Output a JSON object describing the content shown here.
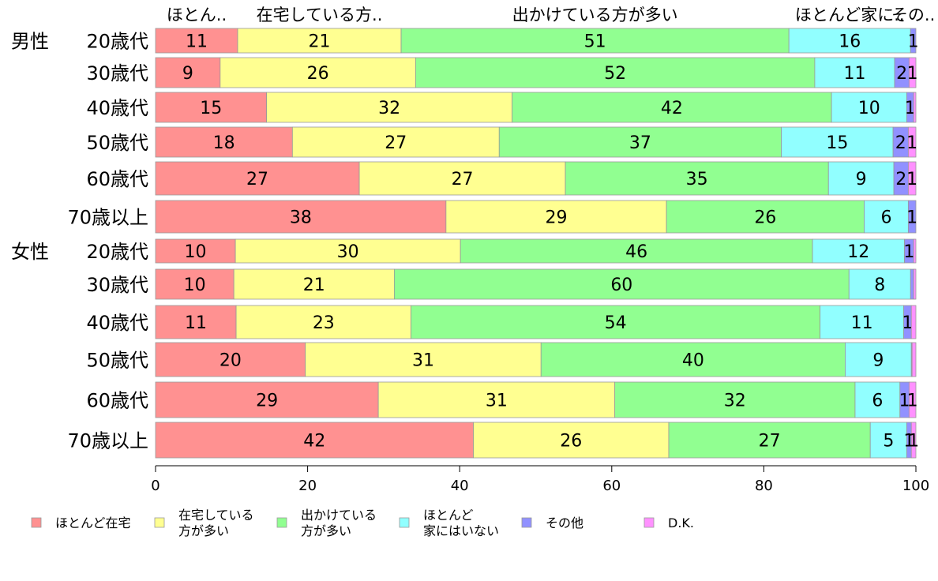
{
  "chart_data": {
    "type": "bar",
    "orientation": "horizontal",
    "stacked": true,
    "groups": [
      {
        "label": "男性",
        "first_index": 0
      },
      {
        "label": "女性",
        "first_index": 6
      }
    ],
    "categories": [
      "20歳代",
      "30歳代",
      "40歳代",
      "50歳代",
      "60歳代",
      "70歳以上",
      "20歳代",
      "30歳代",
      "40歳代",
      "50歳代",
      "60歳代",
      "70歳以上"
    ],
    "top_labels": [
      "ほとん..",
      "在宅している方..",
      "出かけている方が多い",
      "ほとんど家に..",
      "その..",
      ""
    ],
    "series": [
      {
        "name": "ほとんど在宅",
        "color": "#ff9191",
        "values": [
          10.8,
          8.5,
          14.6,
          18.0,
          26.8,
          38.2,
          10.5,
          10.3,
          10.6,
          19.7,
          29.3,
          41.8
        ],
        "labels": [
          "11",
          "9",
          "15",
          "18",
          "27",
          "38",
          "10",
          "10",
          "11",
          "20",
          "29",
          "42"
        ]
      },
      {
        "name": "在宅している\n方が多い",
        "color": "#ffff91",
        "values": [
          21.5,
          25.7,
          32.3,
          27.2,
          27.1,
          29.0,
          29.6,
          21.1,
          23.0,
          31.0,
          31.1,
          25.7
        ],
        "labels": [
          "21",
          "26",
          "32",
          "27",
          "27",
          "29",
          "30",
          "21",
          "23",
          "31",
          "31",
          "26"
        ]
      },
      {
        "name": "出かけている\n方が多い",
        "color": "#91ff91",
        "values": [
          51.0,
          52.5,
          42.0,
          37.1,
          34.6,
          26.0,
          46.3,
          59.8,
          53.8,
          40.0,
          31.6,
          26.5
        ],
        "labels": [
          "51",
          "52",
          "42",
          "37",
          "35",
          "26",
          "46",
          "60",
          "54",
          "40",
          "32",
          "27"
        ]
      },
      {
        "name": "ほとんど\n家にはいない",
        "color": "#91ffff",
        "values": [
          16.0,
          10.5,
          9.9,
          14.7,
          8.6,
          5.8,
          12.1,
          8.1,
          11.0,
          8.7,
          5.9,
          4.8
        ],
        "labels": [
          "16",
          "11",
          "10",
          "15",
          "9",
          "6",
          "12",
          "8",
          "11",
          "9",
          "6",
          "5"
        ]
      },
      {
        "name": "その他",
        "color": "#9191ff",
        "values": [
          0.7,
          1.9,
          0.9,
          2.0,
          1.9,
          1.0,
          1.2,
          0.4,
          1.0,
          0.1,
          1.2,
          0.6
        ],
        "labels": [
          "1",
          "2",
          "1",
          "2",
          "2",
          "1",
          "1",
          "",
          "1",
          "",
          "1",
          "1"
        ]
      },
      {
        "name": "D.K.",
        "color": "#ff91ff",
        "values": [
          0.0,
          0.9,
          0.3,
          1.0,
          1.0,
          0.0,
          0.3,
          0.3,
          0.6,
          0.5,
          0.9,
          0.6
        ],
        "labels": [
          "",
          "1",
          "",
          "1",
          "1",
          "",
          "",
          "",
          "",
          "",
          "1",
          "1"
        ]
      }
    ],
    "xlim": [
      0,
      100
    ],
    "xticks": [
      0,
      20,
      40,
      60,
      80,
      100
    ],
    "xlabel": "",
    "ylabel": "",
    "grid": false,
    "legend_position": "bottom"
  }
}
